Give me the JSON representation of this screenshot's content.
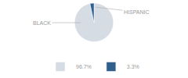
{
  "chart_data": {
    "type": "pie",
    "categories": [
      "BLACK",
      "HISPANIC"
    ],
    "values": [
      96.7,
      3.3
    ],
    "value_labels": [
      "96.7%",
      "3.3%"
    ],
    "colors": [
      "#d6dce4",
      "#2f5f8a"
    ],
    "legend": "bottom"
  }
}
